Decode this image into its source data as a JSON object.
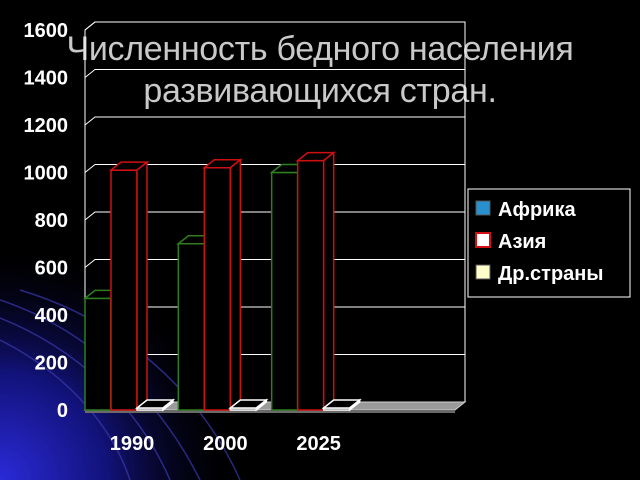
{
  "slide": {
    "title_line1": "Численность бедного населения",
    "title_line2": "развивающихся стран."
  },
  "chart_data": {
    "type": "bar",
    "categories": [
      "1990",
      "2000",
      "2025"
    ],
    "series": [
      {
        "name": "Африка",
        "values": [
          470,
          700,
          1000
        ],
        "color": "#2e7d1f",
        "swatch": "#2a8fcf"
      },
      {
        "name": "Азия",
        "values": [
          1010,
          1020,
          1050
        ],
        "color": "#d01010",
        "swatch": "#ffffff"
      },
      {
        "name": "Др.страны",
        "values": [
          0,
          0,
          0
        ],
        "color": "#1a1a1a",
        "swatch": "#ffffcc"
      }
    ],
    "ylim": [
      0,
      1600
    ],
    "yticks": [
      0,
      200,
      400,
      600,
      800,
      1000,
      1200,
      1400,
      1600
    ],
    "grid": true,
    "legend": "right"
  }
}
